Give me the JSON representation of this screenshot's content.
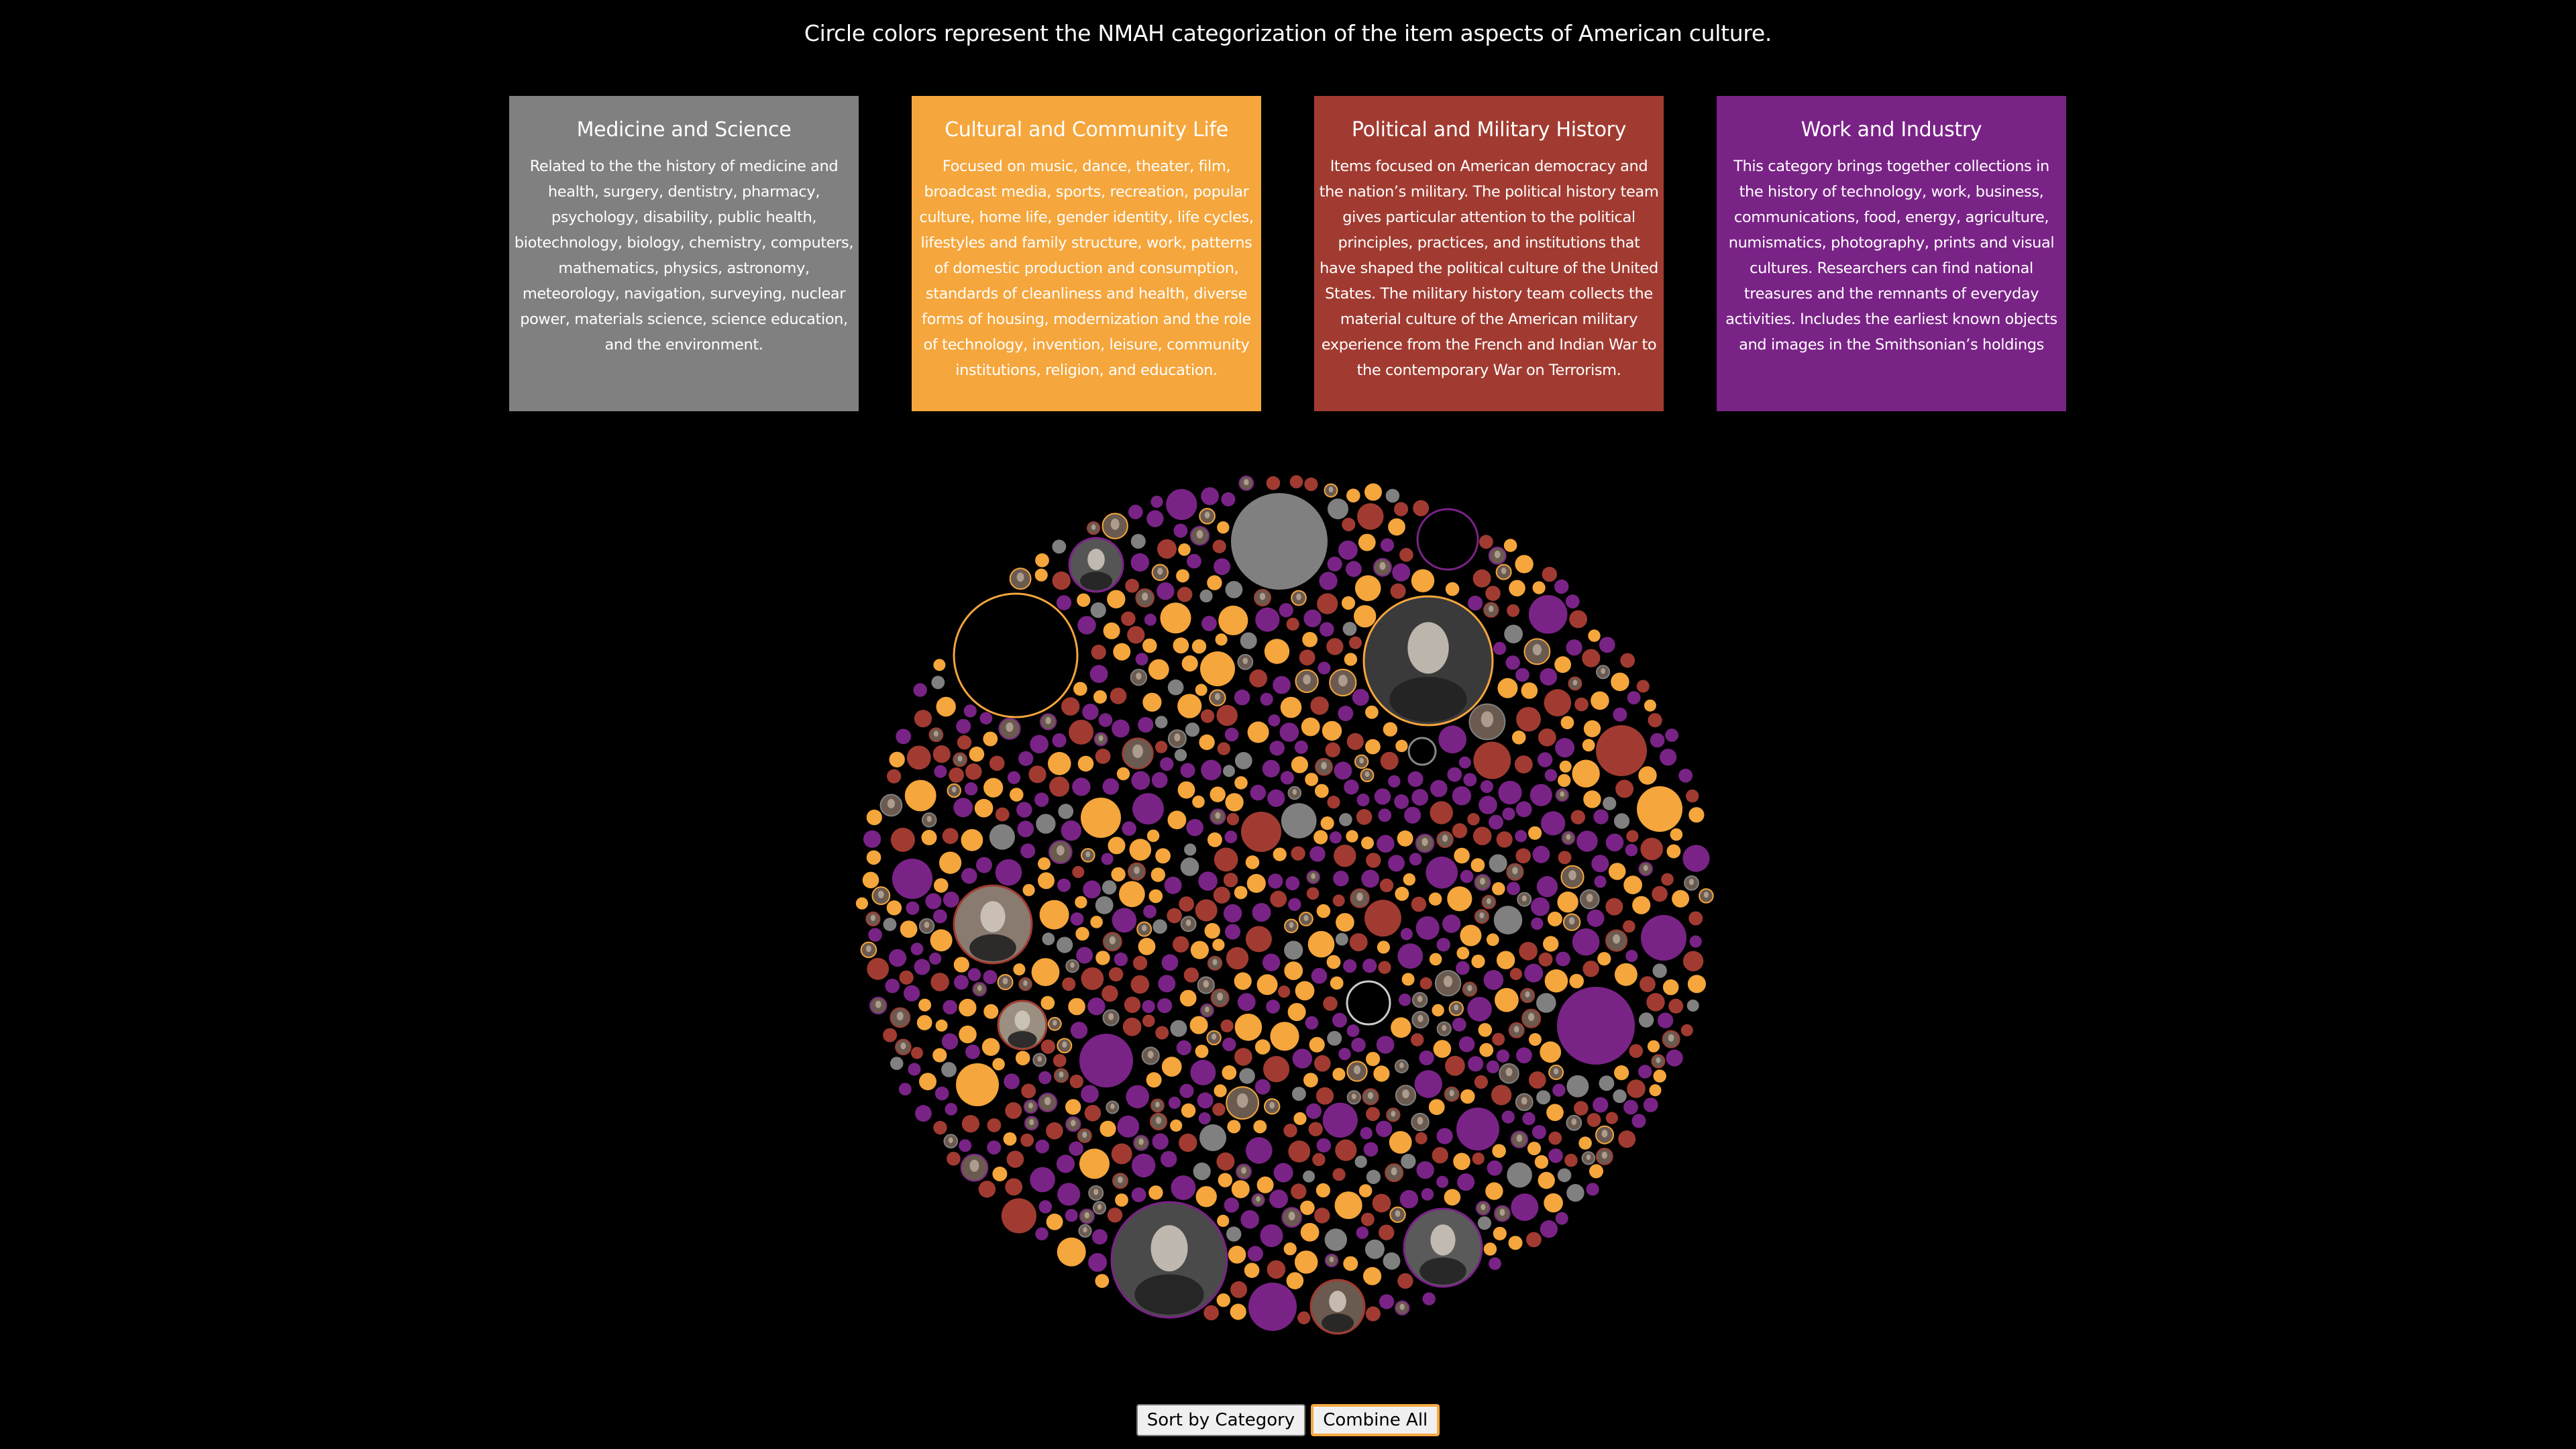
{
  "intro": "Circle colors represent the NMAH categorization of the item aspects of American culture.",
  "categories": [
    {
      "title": "Medicine and Science",
      "description": "Related to the the history of medicine and health, surgery, dentistry, pharmacy, psychology, disability, public health, biotechnology, biology, chemistry, computers, mathematics, physics, astronomy, meteorology, navigation, surveying, nuclear power, materials science, science education, and the environment.",
      "color": "#808080"
    },
    {
      "title": "Cultural and Community Life",
      "description": "Focused on music, dance, theater, film, broadcast media, sports, recreation, popular culture, home life, gender identity, life cycles, lifestyles and family structure, work, patterns of domestic production and consumption, standards of cleanliness and health, diverse forms of housing, modernization and the role of technology, invention, leisure, community institutions, religion, and education.",
      "color": "#f5a63c"
    },
    {
      "title": "Political and Military History",
      "description": "Items focused on American democracy and the nation’s military. The political history team gives particular attention to the political principles, practices, and institutions that have shaped the political culture of the United States. The military history team collects the material culture of the American military experience from the French and Indian War to the contemporary War on Terrorism.",
      "color": "#a13b31"
    },
    {
      "title": "Work and Industry",
      "description": "This category brings together collections in the history of technology, work, business, communications, food, energy, agriculture, numismatics, photography, prints and visual cultures. Researchers can find national treasures and the remnants of everyday activities. Includes the earliest known objects and images in the Smithsonian’s holdings",
      "color": "#7a2387"
    }
  ],
  "portrait_color": "#6b5a4f",
  "controls": {
    "sort_label": "Sort by Category",
    "combine_label": "Combine All",
    "active": "combine"
  }
}
